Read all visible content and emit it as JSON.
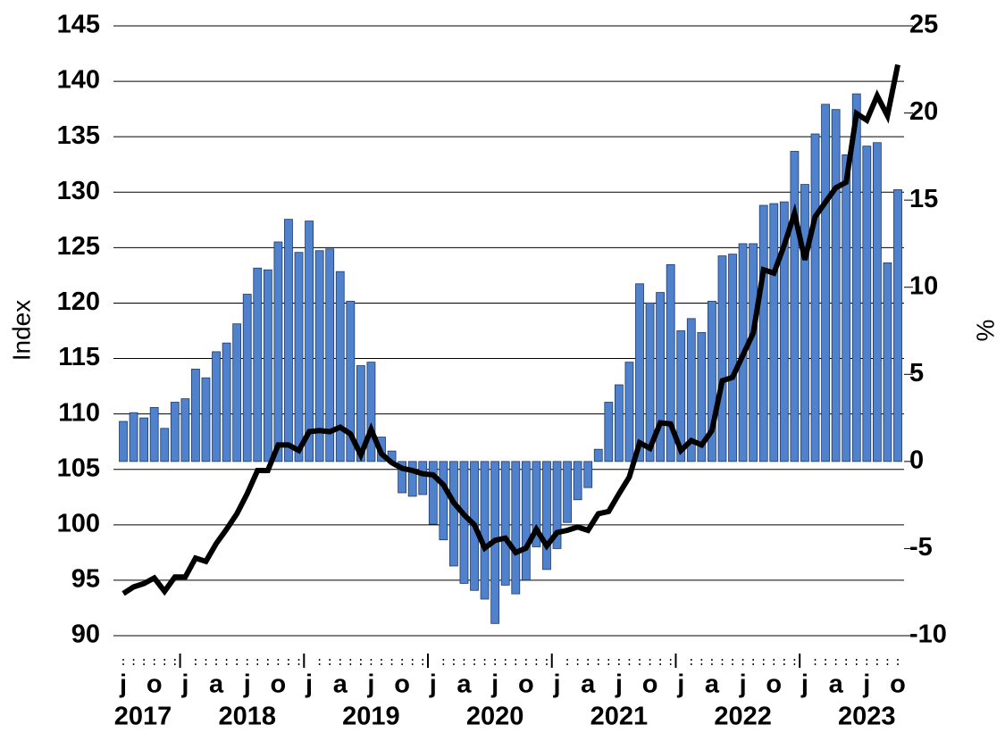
{
  "chart_data": {
    "type": "combo",
    "y_label": "Index",
    "y2_label": "%",
    "categories": [
      "j",
      null,
      null,
      "o",
      null,
      null,
      "j",
      null,
      null,
      "a",
      null,
      null,
      "j",
      null,
      null,
      "o",
      null,
      null,
      "j",
      null,
      null,
      "a",
      null,
      null,
      "j",
      null,
      null,
      "o",
      null,
      null,
      "j",
      null,
      null,
      "a",
      null,
      null,
      "j",
      null,
      null,
      "o",
      null,
      null,
      "j",
      null,
      null,
      "a",
      null,
      null,
      "j",
      null,
      null,
      "o",
      null,
      null,
      "j",
      null,
      null,
      "a",
      null,
      null,
      "j",
      null,
      null,
      "o",
      null,
      null,
      "j",
      null,
      null,
      "a",
      null,
      null,
      "j",
      null,
      null,
      "o"
    ],
    "year_labels": [
      "2017",
      "2018",
      "2019",
      "2020",
      "2021",
      "2022",
      "2023"
    ],
    "ylim": [
      90,
      145
    ],
    "yticks": [
      90,
      95,
      100,
      105,
      110,
      115,
      120,
      125,
      130,
      135,
      140,
      145
    ],
    "y2lim": [
      -10,
      25
    ],
    "y2ticks": [
      -10,
      -5,
      0,
      5,
      10,
      15,
      20,
      25
    ],
    "grid": true,
    "series": [
      {
        "type": "bar",
        "axis": "y2",
        "color": "#4f81cc",
        "values": [
          2.3,
          2.8,
          2.5,
          3.1,
          1.9,
          3.4,
          3.6,
          5.3,
          4.8,
          6.3,
          6.8,
          7.9,
          9.6,
          11.1,
          11.0,
          12.6,
          13.9,
          12.0,
          13.8,
          12.1,
          12.2,
          10.9,
          9.2,
          5.5,
          5.7,
          1.4,
          0.6,
          -1.8,
          -2.0,
          -1.9,
          -3.6,
          -4.5,
          -6.0,
          -7.0,
          -7.4,
          -7.9,
          -9.3,
          -7.1,
          -7.6,
          -6.8,
          -4.9,
          -6.2,
          -5.0,
          -3.5,
          -2.2,
          -1.5,
          0.7,
          3.4,
          4.4,
          5.7,
          10.2,
          9.1,
          9.7,
          11.3,
          7.5,
          8.2,
          7.4,
          9.2,
          11.8,
          11.9,
          12.5,
          12.5,
          14.7,
          14.8,
          14.9,
          17.8,
          15.9,
          18.8,
          20.5,
          20.2,
          17.6,
          21.1,
          18.1,
          18.3,
          11.4,
          15.6
        ]
      },
      {
        "type": "line",
        "axis": "y",
        "color": "#000000",
        "values": [
          93.8,
          94.4,
          94.7,
          95.2,
          94.0,
          95.3,
          95.3,
          97.0,
          96.7,
          98.3,
          99.6,
          101.0,
          102.8,
          104.9,
          104.9,
          107.2,
          107.2,
          106.7,
          108.4,
          108.5,
          108.4,
          108.8,
          108.2,
          106.3,
          108.6,
          106.4,
          105.6,
          105.1,
          104.9,
          104.6,
          104.5,
          103.6,
          102.0,
          100.9,
          100.0,
          97.9,
          98.6,
          98.8,
          97.5,
          97.9,
          99.6,
          98.1,
          99.3,
          99.5,
          99.8,
          99.5,
          101.0,
          101.2,
          102.8,
          104.3,
          107.4,
          106.9,
          109.2,
          109.1,
          106.7,
          107.6,
          107.2,
          108.5,
          113.0,
          113.3,
          115.3,
          117.3,
          123.0,
          122.7,
          125.2,
          128.1,
          123.9,
          127.8,
          129.1,
          130.4,
          130.9,
          137.1,
          136.5,
          138.7,
          136.9,
          141.5
        ]
      }
    ]
  }
}
